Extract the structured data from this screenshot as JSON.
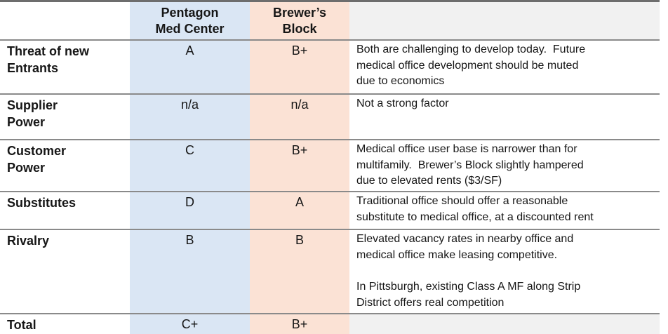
{
  "table": {
    "header": {
      "factor_label": "",
      "pentagon_label": "Pentagon\nMed Center",
      "brewers_label": "Brewer’s\nBlock",
      "comment_label": ""
    },
    "rows": [
      {
        "factor": "Threat of new\nEntrants",
        "pentagon": "A",
        "brewers": "B+",
        "comment": "Both are challenging to develop today.  Future\nmedical office development should be muted\ndue to economics"
      },
      {
        "factor": "Supplier\nPower",
        "pentagon": "n/a",
        "brewers": "n/a",
        "comment": "Not a strong factor"
      },
      {
        "factor": "Customer\nPower",
        "pentagon": "C",
        "brewers": "B+",
        "comment": "Medical office user base is narrower than for\nmultifamily.  Brewer’s Block slightly hampered\ndue to elevated rents ($3/SF)"
      },
      {
        "factor": "Substitutes",
        "pentagon": "D",
        "brewers": "A",
        "comment": "Traditional office should offer a reasonable\nsubstitute to medical office, at a discounted rent"
      },
      {
        "factor": "Rivalry",
        "pentagon": "B",
        "brewers": "B",
        "comment": "Elevated vacancy rates in nearby office and\nmedical office make leasing competitive.\n\nIn Pittsburgh, existing Class A MF along Strip\nDistrict offers real competition"
      },
      {
        "factor": "Total",
        "pentagon": "C+",
        "brewers": "B+",
        "comment": ""
      }
    ],
    "colors": {
      "pentagon_column_fill": "#dae6f4",
      "brewers_column_fill": "#fbe2d5",
      "neutral_cell_fill": "#f1f1f1",
      "outer_border": "#6d6d6d",
      "inner_border": "#8a8a8a"
    }
  },
  "chart_data": {
    "type": "table",
    "columns": [
      "",
      "Pentagon Med Center",
      "Brewer’s Block",
      ""
    ],
    "rows": [
      [
        "Threat of new Entrants",
        "A",
        "B+",
        "Both are challenging to develop today.  Future medical office development should be muted due to economics"
      ],
      [
        "Supplier Power",
        "n/a",
        "n/a",
        "Not a strong factor"
      ],
      [
        "Customer Power",
        "C",
        "B+",
        "Medical office user base is narrower than for multifamily.  Brewer’s Block slightly hampered due to elevated rents ($3/SF)"
      ],
      [
        "Substitutes",
        "D",
        "A",
        "Traditional office should offer a reasonable substitute to medical office, at a discounted rent"
      ],
      [
        "Rivalry",
        "B",
        "B",
        "Elevated vacancy rates in nearby office and medical office make leasing competitive.\n\nIn Pittsburgh, existing Class A MF along Strip District offers real competition"
      ],
      [
        "Total",
        "C+",
        "B+",
        ""
      ]
    ]
  }
}
